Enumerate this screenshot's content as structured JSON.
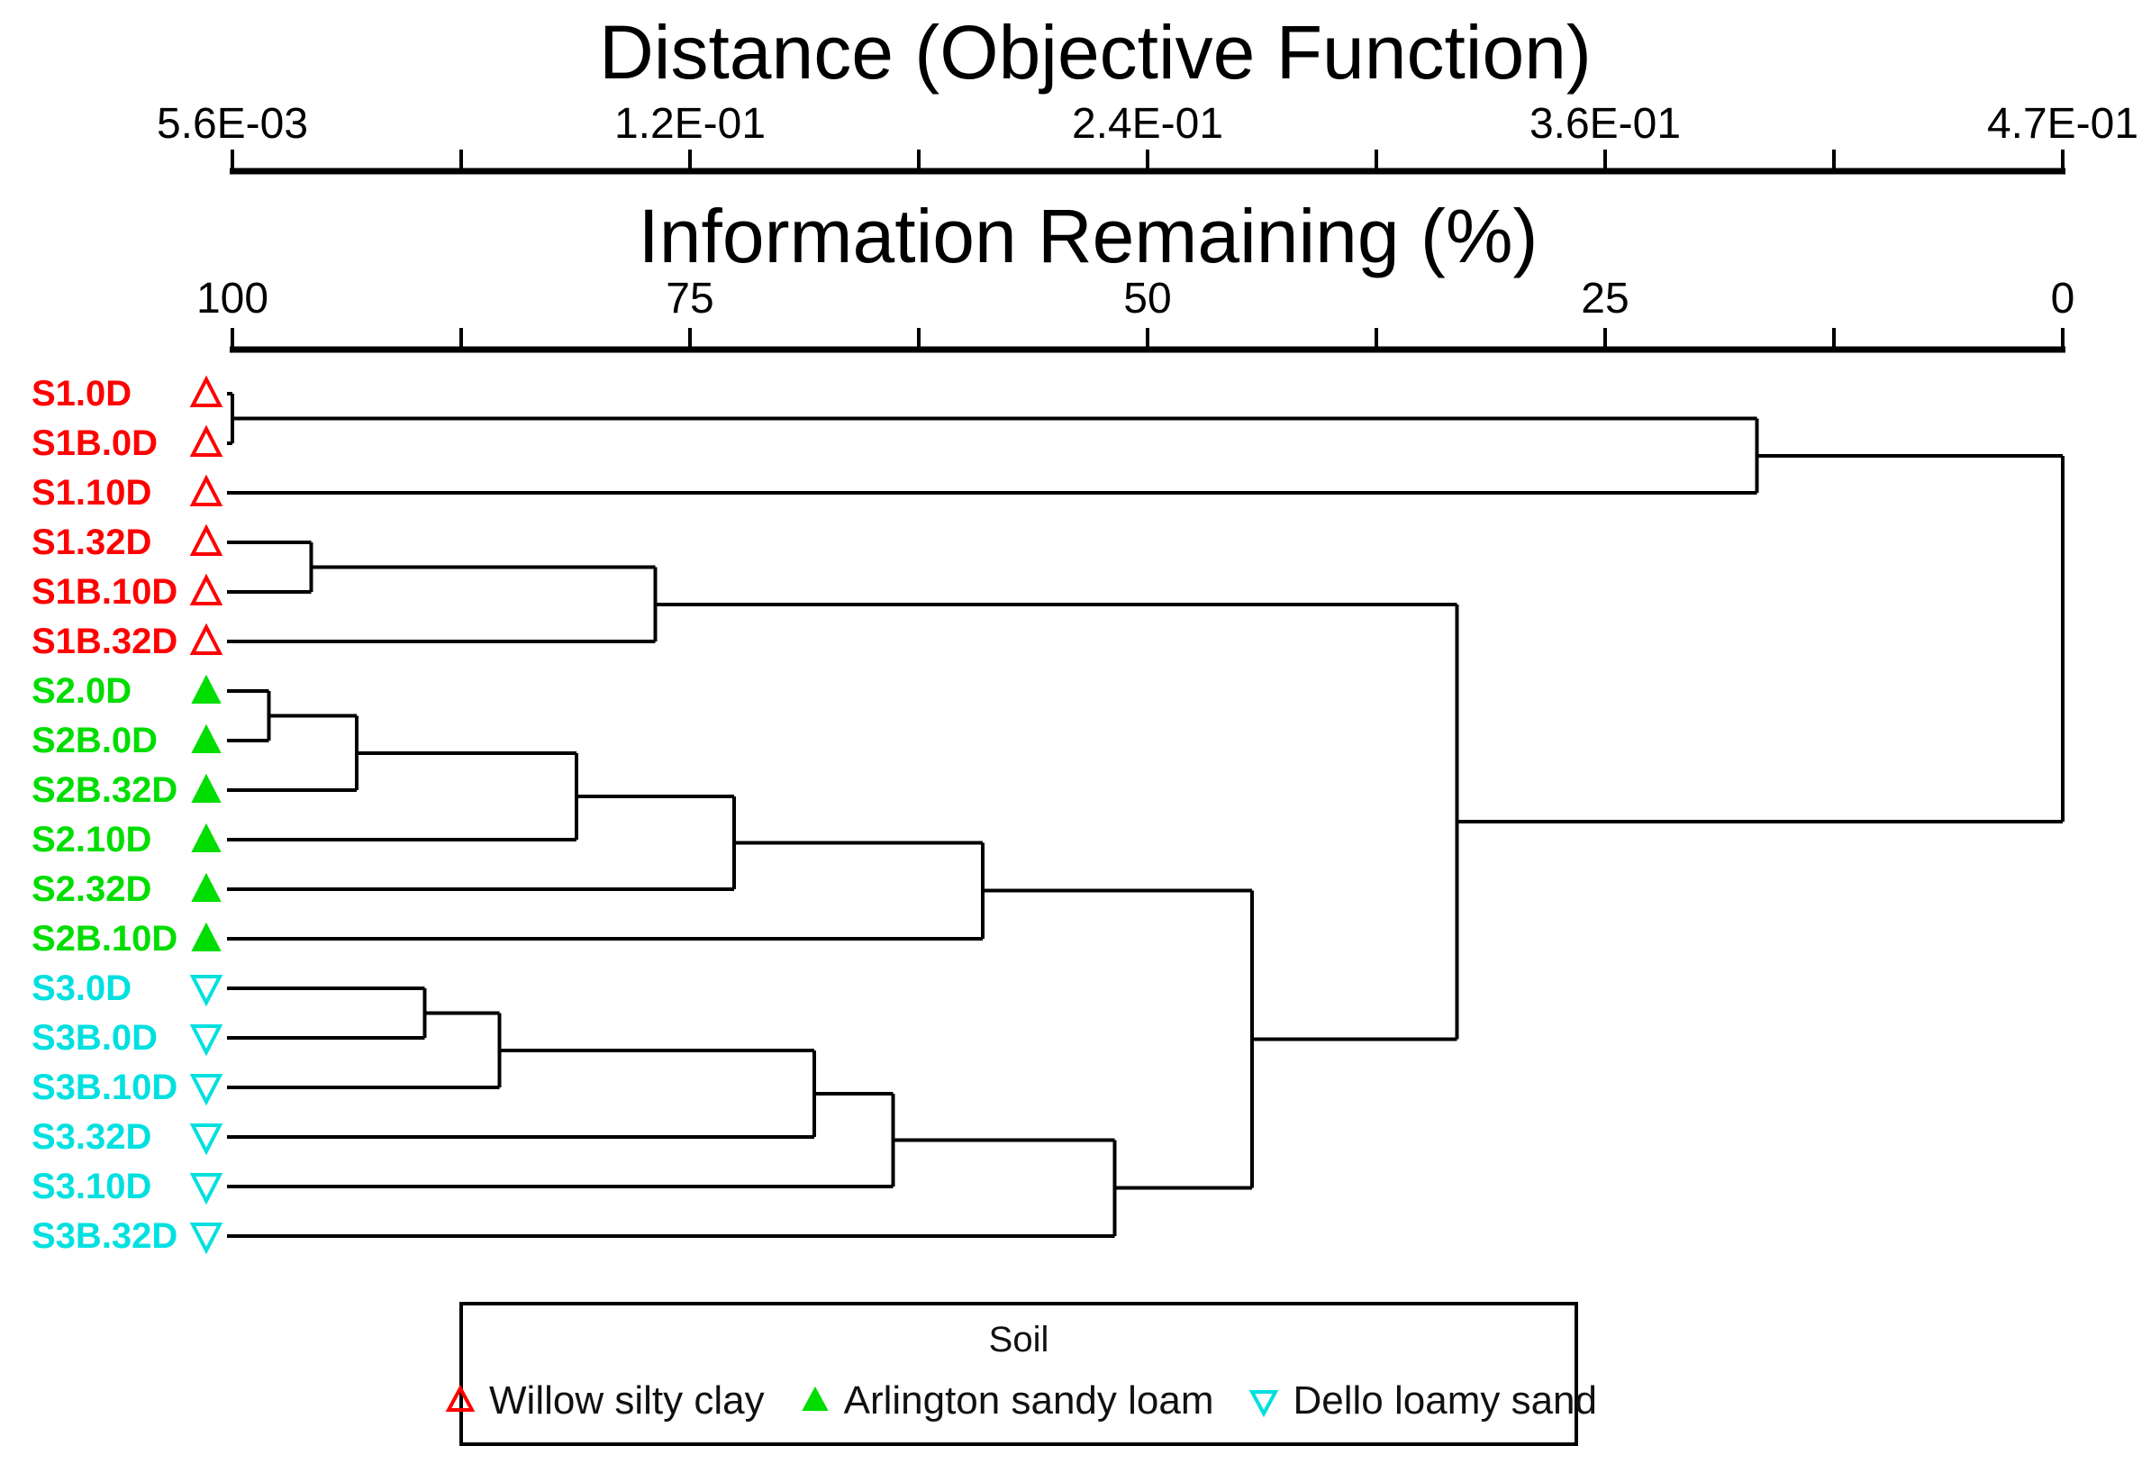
{
  "figure": {
    "background": "#ffffff",
    "line_color": "#000000"
  },
  "axes": {
    "distance": {
      "title": "Distance (Objective Function)",
      "tick_labels": [
        "5.6E-03",
        "1.2E-01",
        "2.4E-01",
        "3.6E-01",
        "4.7E-01"
      ],
      "num_ticks": 9,
      "labeled_tick_indices": [
        0,
        2,
        4,
        6,
        8
      ],
      "range": [
        0.0056,
        0.47
      ]
    },
    "information": {
      "title": "Information Remaining (%)",
      "tick_labels": [
        "100",
        "75",
        "50",
        "25",
        "0"
      ],
      "num_ticks": 9,
      "labeled_tick_indices": [
        0,
        2,
        4,
        6,
        8
      ],
      "range": [
        100,
        0
      ]
    }
  },
  "chart_data": {
    "type": "dendrogram",
    "orientation": "horizontal, leaves at left, root at right",
    "x_scale": "information remaining %, 100 at left end of axis, 0 at right end",
    "leaves": [
      {
        "id": "S1.0D",
        "label": "S1.0D",
        "soil": "Willow silty clay",
        "marker": "triangle-up-open",
        "color": "#ff0000"
      },
      {
        "id": "S1B.0D",
        "label": "S1B.0D",
        "soil": "Willow silty clay",
        "marker": "triangle-up-open",
        "color": "#ff0000"
      },
      {
        "id": "S1.10D",
        "label": "S1.10D",
        "soil": "Willow silty clay",
        "marker": "triangle-up-open",
        "color": "#ff0000"
      },
      {
        "id": "S1.32D",
        "label": "S1.32D",
        "soil": "Willow silty clay",
        "marker": "triangle-up-open",
        "color": "#ff0000"
      },
      {
        "id": "S1B.10D",
        "label": "S1B.10D",
        "soil": "Willow silty clay",
        "marker": "triangle-up-open",
        "color": "#ff0000"
      },
      {
        "id": "S1B.32D",
        "label": "S1B.32D",
        "soil": "Willow silty clay",
        "marker": "triangle-up-open",
        "color": "#ff0000"
      },
      {
        "id": "S2.0D",
        "label": "S2.0D",
        "soil": "Arlington sandy loam",
        "marker": "triangle-up-filled",
        "color": "#00dd00"
      },
      {
        "id": "S2B.0D",
        "label": "S2B.0D",
        "soil": "Arlington sandy loam",
        "marker": "triangle-up-filled",
        "color": "#00dd00"
      },
      {
        "id": "S2B.32D",
        "label": "S2B.32D",
        "soil": "Arlington sandy loam",
        "marker": "triangle-up-filled",
        "color": "#00dd00"
      },
      {
        "id": "S2.10D",
        "label": "S2.10D",
        "soil": "Arlington sandy loam",
        "marker": "triangle-up-filled",
        "color": "#00dd00"
      },
      {
        "id": "S2.32D",
        "label": "S2.32D",
        "soil": "Arlington sandy loam",
        "marker": "triangle-up-filled",
        "color": "#00dd00"
      },
      {
        "id": "S2B.10D",
        "label": "S2B.10D",
        "soil": "Arlington sandy loam",
        "marker": "triangle-up-filled",
        "color": "#00dd00"
      },
      {
        "id": "S3.0D",
        "label": "S3.0D",
        "soil": "Dello loamy sand",
        "marker": "triangle-down-open",
        "color": "#00e0e0"
      },
      {
        "id": "S3B.0D",
        "label": "S3B.0D",
        "soil": "Dello loamy sand",
        "marker": "triangle-down-open",
        "color": "#00e0e0"
      },
      {
        "id": "S3B.10D",
        "label": "S3B.10D",
        "soil": "Dello loamy sand",
        "marker": "triangle-down-open",
        "color": "#00e0e0"
      },
      {
        "id": "S3.32D",
        "label": "S3.32D",
        "soil": "Dello loamy sand",
        "marker": "triangle-down-open",
        "color": "#00e0e0"
      },
      {
        "id": "S3.10D",
        "label": "S3.10D",
        "soil": "Dello loamy sand",
        "marker": "triangle-down-open",
        "color": "#00e0e0"
      },
      {
        "id": "S3B.32D",
        "label": "S3B.32D",
        "soil": "Dello loamy sand",
        "marker": "triangle-down-open",
        "color": "#00e0e0"
      }
    ],
    "merges": [
      {
        "id": "n1",
        "children": [
          "S1.0D",
          "S1B.0D"
        ],
        "info_remaining_pct": 100.0
      },
      {
        "id": "n2",
        "children": [
          "S2.0D",
          "S2B.0D"
        ],
        "info_remaining_pct": 98.0
      },
      {
        "id": "n3",
        "children": [
          "S1.32D",
          "S1B.10D"
        ],
        "info_remaining_pct": 95.7
      },
      {
        "id": "n4",
        "children": [
          "n2",
          "S2B.32D"
        ],
        "info_remaining_pct": 93.2
      },
      {
        "id": "n5",
        "children": [
          "S3.0D",
          "S3B.0D"
        ],
        "info_remaining_pct": 89.5
      },
      {
        "id": "n6",
        "children": [
          "n5",
          "S3B.10D"
        ],
        "info_remaining_pct": 85.4
      },
      {
        "id": "n7",
        "children": [
          "n4",
          "S2.10D"
        ],
        "info_remaining_pct": 81.2
      },
      {
        "id": "n8",
        "children": [
          "n3",
          "S1B.32D"
        ],
        "info_remaining_pct": 76.9
      },
      {
        "id": "n9",
        "children": [
          "n7",
          "S2.32D"
        ],
        "info_remaining_pct": 72.6
      },
      {
        "id": "n10",
        "children": [
          "n6",
          "S3.32D"
        ],
        "info_remaining_pct": 68.2
      },
      {
        "id": "n11",
        "children": [
          "n10",
          "S3.10D"
        ],
        "info_remaining_pct": 63.9
      },
      {
        "id": "n12",
        "children": [
          "n9",
          "S2B.10D"
        ],
        "info_remaining_pct": 59.0
      },
      {
        "id": "n13",
        "children": [
          "n11",
          "S3B.32D"
        ],
        "info_remaining_pct": 51.8
      },
      {
        "id": "n14",
        "children": [
          "n12",
          "n13"
        ],
        "info_remaining_pct": 44.3
      },
      {
        "id": "n15",
        "children": [
          "n8",
          "n14"
        ],
        "info_remaining_pct": 33.1
      },
      {
        "id": "n16",
        "children": [
          "n1",
          "S1.10D"
        ],
        "info_remaining_pct": 16.7
      },
      {
        "id": "root",
        "children": [
          "n16",
          "n15"
        ],
        "info_remaining_pct": 0.0
      }
    ]
  },
  "legend": {
    "title": "Soil",
    "items": [
      {
        "label": "Willow silty clay",
        "marker": "triangle-up-open",
        "color": "#ff0000"
      },
      {
        "label": "Arlington sandy loam",
        "marker": "triangle-up-filled",
        "color": "#00dd00"
      },
      {
        "label": "Dello loamy sand",
        "marker": "triangle-down-open",
        "color": "#00e0e0"
      }
    ]
  }
}
